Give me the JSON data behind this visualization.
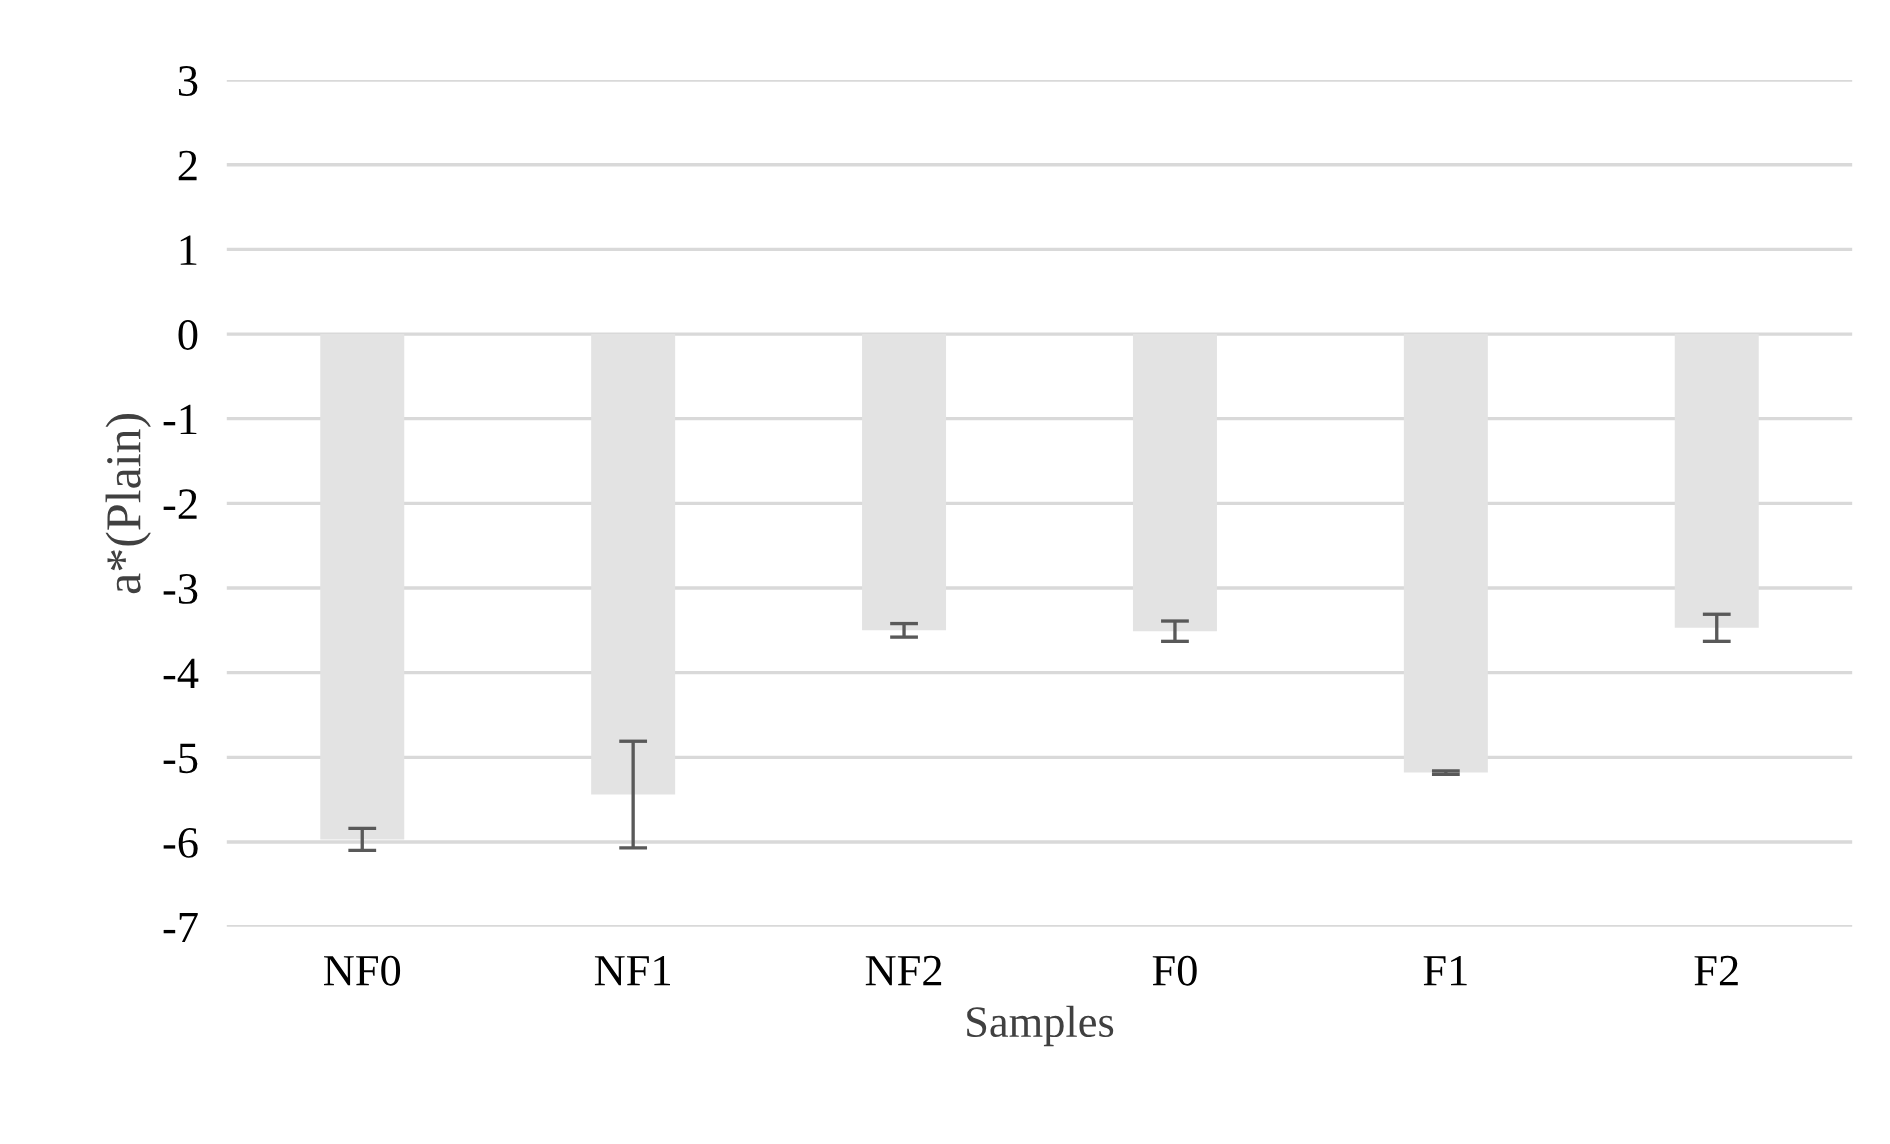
{
  "chart_data": {
    "type": "bar",
    "xlabel": "Samples",
    "ylabel": "a*(Plain)",
    "categories": [
      "NF0",
      "NF1",
      "NF2",
      "F0",
      "F1",
      "F2"
    ],
    "values": [
      -5.97,
      -5.44,
      -3.5,
      -3.51,
      -5.18,
      -3.47
    ],
    "errors": [
      0.13,
      0.63,
      0.08,
      0.12,
      0.02,
      0.16
    ],
    "color": "#e3e3e3",
    "ylim": [
      -7,
      3
    ],
    "yticks": [
      {
        "value": -7,
        "label": "-7"
      },
      {
        "value": -6,
        "label": "-6"
      },
      {
        "value": -5,
        "label": "-5"
      },
      {
        "value": -4,
        "label": "-4"
      },
      {
        "value": -3,
        "label": "-3"
      },
      {
        "value": -2,
        "label": "-2"
      },
      {
        "value": -1,
        "label": "-1"
      },
      0,
      1,
      2,
      3
    ],
    "grid": "y"
  }
}
